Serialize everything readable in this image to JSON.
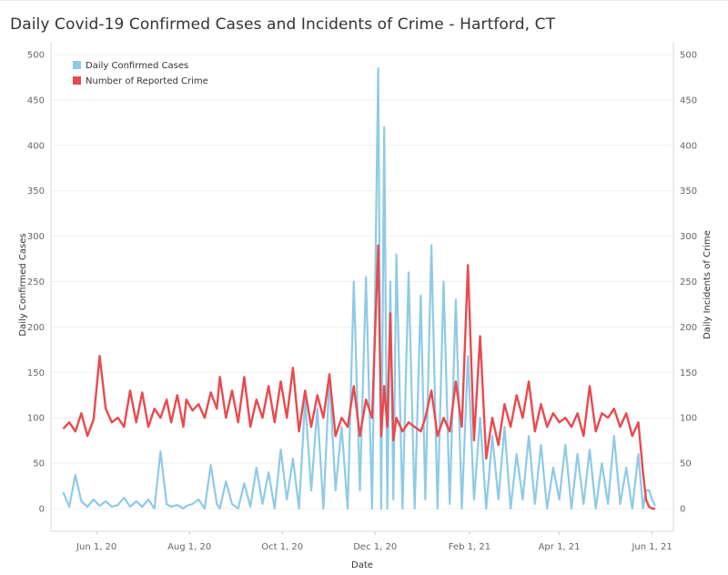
{
  "chart_data": {
    "type": "line",
    "title": "Daily Covid-19 Confirmed Cases and Incidents of Crime - Hartford, CT",
    "xlabel": "Date",
    "ylabel_left": "Daily Confirmed Cases",
    "ylabel_right": "Daily Incidents of Crime",
    "ylim": [
      0,
      500
    ],
    "yticks": [
      0,
      50,
      100,
      150,
      200,
      250,
      300,
      350,
      400,
      450,
      500
    ],
    "xlim": [
      "2020-05-02",
      "2021-06-15"
    ],
    "xticks": [
      {
        "date": "2020-06-01",
        "label": "Jun 1, 20"
      },
      {
        "date": "2020-08-01",
        "label": "Aug 1, 20"
      },
      {
        "date": "2020-10-01",
        "label": "Oct 1, 20"
      },
      {
        "date": "2020-12-01",
        "label": "Dec 1, 20"
      },
      {
        "date": "2021-02-01",
        "label": "Feb 1, 21"
      },
      {
        "date": "2021-04-01",
        "label": "Apr 1, 21"
      },
      {
        "date": "2021-06-01",
        "label": "Jun 1, 21"
      }
    ],
    "grid": "horizontal",
    "legend_position": "top-left",
    "series": [
      {
        "name": "Daily Confirmed Cases",
        "color": "#8ecae6",
        "x": [
          "2020-05-10",
          "2020-05-14",
          "2020-05-18",
          "2020-05-22",
          "2020-05-26",
          "2020-05-30",
          "2020-06-03",
          "2020-06-07",
          "2020-06-11",
          "2020-06-15",
          "2020-06-19",
          "2020-06-23",
          "2020-06-27",
          "2020-07-01",
          "2020-07-05",
          "2020-07-09",
          "2020-07-13",
          "2020-07-17",
          "2020-07-20",
          "2020-07-24",
          "2020-07-28",
          "2020-07-30",
          "2020-08-03",
          "2020-08-07",
          "2020-08-11",
          "2020-08-15",
          "2020-08-19",
          "2020-08-21",
          "2020-08-25",
          "2020-08-29",
          "2020-09-02",
          "2020-09-06",
          "2020-09-10",
          "2020-09-14",
          "2020-09-18",
          "2020-09-22",
          "2020-09-26",
          "2020-09-30",
          "2020-10-04",
          "2020-10-08",
          "2020-10-12",
          "2020-10-16",
          "2020-10-20",
          "2020-10-24",
          "2020-10-28",
          "2020-11-01",
          "2020-11-05",
          "2020-11-09",
          "2020-11-13",
          "2020-11-17",
          "2020-11-21",
          "2020-11-25",
          "2020-11-29",
          "2020-12-03",
          "2020-12-05",
          "2020-12-07",
          "2020-12-09",
          "2020-12-11",
          "2020-12-13",
          "2020-12-15",
          "2020-12-19",
          "2020-12-23",
          "2020-12-27",
          "2020-12-31",
          "2021-01-03",
          "2021-01-07",
          "2021-01-11",
          "2021-01-15",
          "2021-01-19",
          "2021-01-23",
          "2021-01-27",
          "2021-01-31",
          "2021-02-04",
          "2021-02-08",
          "2021-02-12",
          "2021-02-16",
          "2021-02-20",
          "2021-02-24",
          "2021-02-28",
          "2021-03-04",
          "2021-03-08",
          "2021-03-12",
          "2021-03-16",
          "2021-03-20",
          "2021-03-24",
          "2021-03-28",
          "2021-04-01",
          "2021-04-05",
          "2021-04-09",
          "2021-04-13",
          "2021-04-17",
          "2021-04-21",
          "2021-04-25",
          "2021-04-29",
          "2021-05-03",
          "2021-05-07",
          "2021-05-11",
          "2021-05-15",
          "2021-05-19",
          "2021-05-23",
          "2021-05-26",
          "2021-05-28",
          "2021-05-30",
          "2021-06-01",
          "2021-06-03"
        ],
        "values": [
          18,
          2,
          37,
          8,
          2,
          10,
          3,
          8,
          2,
          4,
          12,
          2,
          8,
          2,
          10,
          0,
          63,
          5,
          2,
          4,
          0,
          3,
          5,
          10,
          0,
          48,
          5,
          0,
          30,
          5,
          0,
          28,
          2,
          45,
          5,
          40,
          0,
          65,
          10,
          55,
          0,
          120,
          20,
          110,
          0,
          145,
          20,
          90,
          0,
          250,
          20,
          255,
          0,
          485,
          0,
          420,
          0,
          250,
          10,
          280,
          0,
          260,
          0,
          235,
          10,
          290,
          0,
          250,
          5,
          230,
          0,
          168,
          10,
          100,
          0,
          80,
          10,
          90,
          0,
          60,
          10,
          80,
          5,
          70,
          0,
          45,
          10,
          70,
          0,
          60,
          5,
          65,
          0,
          50,
          5,
          80,
          5,
          45,
          0,
          60,
          0,
          20,
          20,
          10,
          3
        ]
      },
      {
        "name": "Number of Reported Crime",
        "color": "#e84a4f",
        "x": [
          "2020-05-10",
          "2020-05-14",
          "2020-05-18",
          "2020-05-22",
          "2020-05-26",
          "2020-05-30",
          "2020-06-03",
          "2020-06-07",
          "2020-06-11",
          "2020-06-15",
          "2020-06-19",
          "2020-06-23",
          "2020-06-27",
          "2020-07-01",
          "2020-07-05",
          "2020-07-09",
          "2020-07-13",
          "2020-07-17",
          "2020-07-20",
          "2020-07-24",
          "2020-07-28",
          "2020-07-30",
          "2020-08-03",
          "2020-08-07",
          "2020-08-11",
          "2020-08-15",
          "2020-08-19",
          "2020-08-21",
          "2020-08-25",
          "2020-08-29",
          "2020-09-02",
          "2020-09-06",
          "2020-09-10",
          "2020-09-14",
          "2020-09-18",
          "2020-09-22",
          "2020-09-26",
          "2020-09-30",
          "2020-10-04",
          "2020-10-08",
          "2020-10-12",
          "2020-10-16",
          "2020-10-20",
          "2020-10-24",
          "2020-10-28",
          "2020-11-01",
          "2020-11-05",
          "2020-11-09",
          "2020-11-13",
          "2020-11-17",
          "2020-11-21",
          "2020-11-25",
          "2020-11-29",
          "2020-12-03",
          "2020-12-05",
          "2020-12-07",
          "2020-12-09",
          "2020-12-11",
          "2020-12-13",
          "2020-12-15",
          "2020-12-19",
          "2020-12-23",
          "2020-12-27",
          "2020-12-31",
          "2021-01-03",
          "2021-01-07",
          "2021-01-11",
          "2021-01-15",
          "2021-01-19",
          "2021-01-23",
          "2021-01-27",
          "2021-01-31",
          "2021-02-04",
          "2021-02-08",
          "2021-02-12",
          "2021-02-16",
          "2021-02-20",
          "2021-02-24",
          "2021-02-28",
          "2021-03-04",
          "2021-03-08",
          "2021-03-12",
          "2021-03-16",
          "2021-03-20",
          "2021-03-24",
          "2021-03-28",
          "2021-04-01",
          "2021-04-05",
          "2021-04-09",
          "2021-04-13",
          "2021-04-17",
          "2021-04-21",
          "2021-04-25",
          "2021-04-29",
          "2021-05-03",
          "2021-05-07",
          "2021-05-11",
          "2021-05-15",
          "2021-05-19",
          "2021-05-23",
          "2021-05-26",
          "2021-05-28",
          "2021-05-30",
          "2021-06-01",
          "2021-06-03"
        ],
        "values": [
          88,
          95,
          85,
          105,
          80,
          98,
          168,
          110,
          95,
          100,
          90,
          130,
          95,
          128,
          90,
          110,
          100,
          120,
          95,
          125,
          90,
          120,
          108,
          115,
          100,
          128,
          110,
          145,
          100,
          130,
          95,
          145,
          90,
          120,
          100,
          135,
          95,
          140,
          100,
          155,
          85,
          130,
          90,
          125,
          100,
          148,
          80,
          100,
          90,
          135,
          80,
          120,
          100,
          290,
          80,
          135,
          90,
          215,
          75,
          100,
          85,
          95,
          90,
          85,
          100,
          130,
          80,
          100,
          85,
          140,
          90,
          268,
          75,
          190,
          55,
          100,
          70,
          115,
          90,
          125,
          100,
          140,
          85,
          115,
          90,
          105,
          95,
          100,
          90,
          105,
          80,
          135,
          85,
          105,
          100,
          110,
          90,
          105,
          80,
          95,
          40,
          10,
          2,
          0,
          0
        ]
      }
    ]
  }
}
